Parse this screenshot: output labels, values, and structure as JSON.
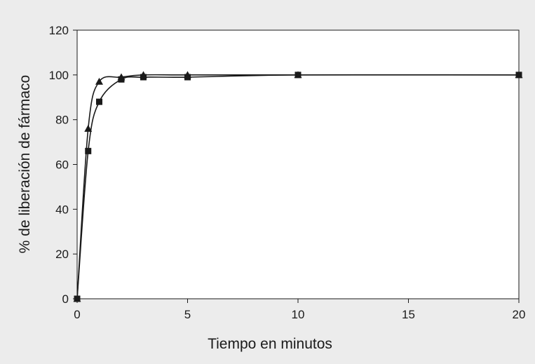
{
  "chart_data": {
    "type": "line",
    "title": "",
    "xlabel": "Tiempo en minutos",
    "ylabel": "% de liberación de fármaco",
    "xlim": [
      0,
      20
    ],
    "ylim": [
      0,
      120
    ],
    "x_ticks": [
      0,
      5,
      10,
      15,
      20
    ],
    "y_ticks": [
      0,
      20,
      40,
      60,
      80,
      100,
      120
    ],
    "x_tick_labels": [
      "0",
      "5",
      "10",
      "15",
      "20"
    ],
    "y_tick_labels": [
      "0",
      "20",
      "40",
      "60",
      "80",
      "100",
      "120"
    ],
    "grid": false,
    "legend": "none",
    "series": [
      {
        "marker": "triangle",
        "color": "#1a1a1a",
        "x": [
          0,
          0.5,
          1,
          2,
          3,
          5,
          10,
          20
        ],
        "values": [
          0,
          76,
          97,
          99,
          100,
          100,
          100,
          100
        ]
      },
      {
        "marker": "square",
        "color": "#1a1a1a",
        "x": [
          0,
          0.5,
          1,
          2,
          3,
          5,
          10,
          20
        ],
        "values": [
          0,
          66,
          88,
          98,
          99,
          99,
          100,
          100
        ]
      }
    ]
  }
}
